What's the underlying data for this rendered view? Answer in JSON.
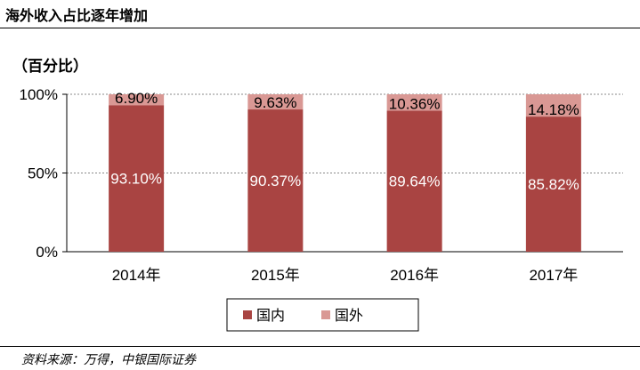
{
  "header": {
    "title": "海外收入占比逐年增加"
  },
  "unit_label": "（百分比）",
  "source": "资料来源：万得，中银国际证券",
  "colors": {
    "domestic": "#A94442",
    "overseas": "#D99894",
    "grid": "#888888"
  },
  "chart_data": {
    "type": "bar",
    "stacked": true,
    "percent": true,
    "categories": [
      "2014年",
      "2015年",
      "2016年",
      "2017年"
    ],
    "series": [
      {
        "name": "国内",
        "values": [
          93.1,
          90.37,
          89.64,
          85.82
        ],
        "labels": [
          "93.10%",
          "90.37%",
          "89.64%",
          "85.82%"
        ]
      },
      {
        "name": "国外",
        "values": [
          6.9,
          9.63,
          10.36,
          14.18
        ],
        "labels": [
          "6.90%",
          "9.63%",
          "10.36%",
          "14.18%"
        ]
      }
    ],
    "ylim": [
      0,
      100
    ],
    "yticks": [
      "0%",
      "50%",
      "100%"
    ],
    "grid": true,
    "legend": "bottom"
  }
}
